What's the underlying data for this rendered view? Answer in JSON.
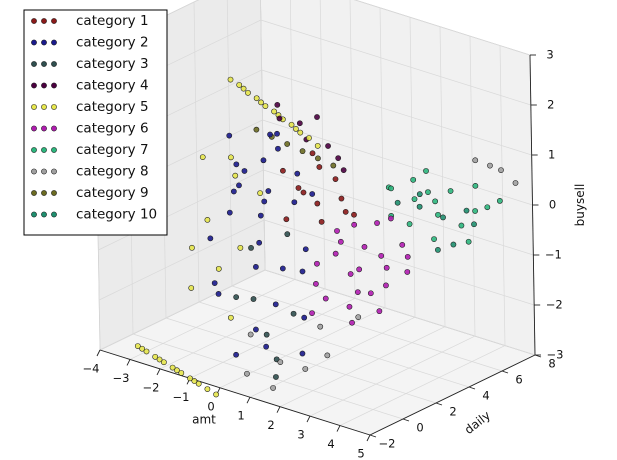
{
  "chart_data": {
    "type": "scatter",
    "projection": "3d",
    "title": "",
    "xlabel": "amt",
    "ylabel": "daily",
    "zlabel": "buysell",
    "xlim": [
      -4,
      5
    ],
    "ylim": [
      -2,
      8
    ],
    "zlim": [
      -3,
      3
    ],
    "x_ticks": [
      -4,
      -3,
      -2,
      -1,
      0,
      1,
      2,
      3,
      4,
      5
    ],
    "y_ticks": [
      -2,
      0,
      2,
      4,
      6,
      8
    ],
    "z_ticks": [
      -3,
      -2,
      -1,
      0,
      1,
      2,
      3
    ],
    "grid": true,
    "legend_position": "top-left",
    "series": [
      {
        "name": "category 1",
        "color": "#8b1a1a",
        "points": [
          [
            0.4,
            2.2,
            0.4
          ],
          [
            0.8,
            2.6,
            0.1
          ],
          [
            1.2,
            3.0,
            0.6
          ],
          [
            0.2,
            1.8,
            -0.2
          ],
          [
            1.0,
            2.4,
            0.9
          ],
          [
            0.6,
            3.2,
            -0.4
          ],
          [
            1.5,
            2.8,
            0.3
          ],
          [
            0.0,
            2.0,
            0.7
          ],
          [
            1.3,
            3.4,
            -0.1
          ],
          [
            0.9,
            1.6,
            0.5
          ],
          [
            1.8,
            3.0,
            0.0
          ],
          [
            0.5,
            2.9,
            1.0
          ]
        ]
      },
      {
        "name": "category 2",
        "color": "#1a1a8c",
        "points": [
          [
            -1.0,
            1.0,
            0.8
          ],
          [
            -0.5,
            2.0,
            0.2
          ],
          [
            0.0,
            0.5,
            -0.5
          ],
          [
            -1.5,
            1.5,
            1.2
          ],
          [
            0.5,
            1.0,
            -1.0
          ],
          [
            -0.8,
            0.2,
            0.0
          ],
          [
            0.2,
            2.5,
            0.6
          ],
          [
            -1.2,
            3.0,
            -0.3
          ],
          [
            0.8,
            0.0,
            -1.5
          ],
          [
            -0.3,
            1.8,
            1.4
          ],
          [
            -1.8,
            0.8,
            -0.8
          ],
          [
            0.4,
            -0.5,
            -2.0
          ],
          [
            -0.6,
            2.8,
            0.9
          ],
          [
            1.0,
            1.5,
            -0.6
          ],
          [
            -1.4,
            2.2,
            0.4
          ],
          [
            0.0,
            -1.0,
            -2.5
          ],
          [
            -0.2,
            1.2,
            1.0
          ],
          [
            0.6,
            2.0,
            -1.2
          ],
          [
            -1.0,
            -0.2,
            -1.6
          ],
          [
            0.3,
            3.2,
            0.1
          ],
          [
            -0.7,
            0.6,
            0.5
          ],
          [
            1.3,
            0.8,
            -1.8
          ],
          [
            -1.6,
            1.9,
            0.0
          ],
          [
            0.9,
            -0.8,
            -2.2
          ],
          [
            -0.4,
            2.4,
            1.3
          ],
          [
            0.1,
            0.1,
            -0.9
          ],
          [
            -1.1,
            2.6,
            -0.5
          ],
          [
            0.7,
            1.4,
            0.3
          ],
          [
            -0.9,
            -0.6,
            -1.3
          ],
          [
            1.5,
            0.3,
            -2.4
          ]
        ]
      },
      {
        "name": "category 3",
        "color": "#2f4f4f",
        "points": [
          [
            -0.5,
            1.0,
            -1.8
          ],
          [
            0.2,
            0.5,
            -2.3
          ],
          [
            -1.0,
            1.8,
            -1.0
          ],
          [
            0.8,
            0.0,
            -2.6
          ],
          [
            0.0,
            2.2,
            -0.6
          ],
          [
            -0.3,
            -0.4,
            -1.5
          ],
          [
            0.5,
            1.6,
            -2.0
          ],
          [
            1.1,
            -0.6,
            -2.8
          ]
        ]
      },
      {
        "name": "category 4",
        "color": "#4b0040",
        "points": [
          [
            -1.2,
            4.0,
            1.2
          ],
          [
            -0.8,
            4.5,
            1.1
          ],
          [
            -0.2,
            3.8,
            1.0
          ],
          [
            0.3,
            4.2,
            0.9
          ],
          [
            0.8,
            3.9,
            0.8
          ],
          [
            -1.6,
            4.6,
            1.3
          ],
          [
            1.2,
            3.5,
            0.7
          ],
          [
            -0.5,
            5.0,
            1.2
          ]
        ]
      },
      {
        "name": "category 5",
        "color": "#e6e64d",
        "points": [
          [
            -3.6,
            5.4,
            1.3
          ],
          [
            -3.2,
            5.2,
            1.3
          ],
          [
            -2.8,
            5.0,
            1.25
          ],
          [
            -2.4,
            4.8,
            1.25
          ],
          [
            -2.0,
            4.6,
            1.2
          ],
          [
            -1.6,
            4.4,
            1.2
          ],
          [
            -1.2,
            4.2,
            1.15
          ],
          [
            -0.8,
            4.0,
            1.15
          ],
          [
            -0.4,
            3.8,
            1.1
          ],
          [
            0.0,
            3.6,
            1.1
          ],
          [
            0.4,
            3.4,
            1.05
          ],
          [
            -3.0,
            5.1,
            1.28
          ],
          [
            -2.2,
            4.7,
            1.22
          ],
          [
            -1.4,
            4.3,
            1.18
          ],
          [
            -0.6,
            3.9,
            1.12
          ],
          [
            -3.4,
            -0.8,
            -3.0
          ],
          [
            -3.0,
            -1.0,
            -3.0
          ],
          [
            -2.6,
            -1.2,
            -3.0
          ],
          [
            -2.2,
            -1.4,
            -3.0
          ],
          [
            -1.8,
            -1.6,
            -3.0
          ],
          [
            -1.4,
            -1.8,
            -3.0
          ],
          [
            -1.0,
            -2.0,
            -3.0
          ],
          [
            -0.6,
            -2.2,
            -3.0
          ],
          [
            -0.2,
            -2.4,
            -3.0
          ],
          [
            0.2,
            -2.6,
            -3.0
          ],
          [
            -3.2,
            -0.9,
            -3.0
          ],
          [
            -2.4,
            -1.3,
            -3.0
          ],
          [
            -1.6,
            -1.7,
            -3.0
          ],
          [
            -0.8,
            -2.1,
            -3.0
          ],
          [
            -2.0,
            1.0,
            -0.5
          ],
          [
            -1.6,
            2.0,
            0.3
          ],
          [
            -1.2,
            0.2,
            -1.2
          ],
          [
            -2.4,
            1.5,
            0.6
          ],
          [
            -0.8,
            0.8,
            -0.8
          ],
          [
            -1.8,
            -0.4,
            -1.6
          ],
          [
            -1.0,
            2.4,
            0.0
          ],
          [
            -2.2,
            0.4,
            -1.0
          ],
          [
            -1.4,
            1.4,
            0.8
          ],
          [
            -0.6,
            -0.2,
            -2.0
          ]
        ]
      },
      {
        "name": "category 6",
        "color": "#b01cb0",
        "points": [
          [
            2.0,
            1.5,
            -0.5
          ],
          [
            2.5,
            2.0,
            -0.8
          ],
          [
            3.0,
            1.0,
            -1.0
          ],
          [
            1.5,
            2.5,
            -0.3
          ],
          [
            2.8,
            2.8,
            -0.6
          ],
          [
            3.5,
            1.8,
            -0.9
          ],
          [
            2.2,
            0.5,
            -1.2
          ],
          [
            1.8,
            3.0,
            -0.2
          ],
          [
            3.2,
            2.4,
            -0.7
          ],
          [
            2.6,
            1.2,
            -1.4
          ],
          [
            1.2,
            1.8,
            -0.9
          ],
          [
            3.8,
            2.6,
            -0.4
          ],
          [
            2.4,
            3.3,
            -0.1
          ],
          [
            2.9,
            0.8,
            -1.6
          ],
          [
            1.6,
            1.0,
            -1.1
          ],
          [
            3.4,
            3.0,
            -0.3
          ],
          [
            2.1,
            2.2,
            -1.0
          ],
          [
            2.7,
            3.6,
            0.0
          ],
          [
            3.6,
            1.2,
            -1.3
          ],
          [
            1.9,
            0.2,
            -1.5
          ],
          [
            4.0,
            2.2,
            -0.6
          ],
          [
            2.3,
            2.7,
            -0.5
          ],
          [
            3.1,
            1.6,
            -1.1
          ],
          [
            1.4,
            2.9,
            -0.6
          ]
        ]
      },
      {
        "name": "category 7",
        "color": "#2cb67d",
        "points": [
          [
            2.5,
            4.0,
            0.5
          ],
          [
            3.0,
            4.5,
            0.3
          ],
          [
            3.5,
            5.0,
            0.0
          ],
          [
            4.0,
            5.5,
            -0.2
          ],
          [
            2.8,
            4.8,
            0.6
          ],
          [
            3.3,
            5.2,
            0.2
          ],
          [
            3.8,
            4.2,
            -0.3
          ],
          [
            2.2,
            4.4,
            0.4
          ],
          [
            4.3,
            5.8,
            0.1
          ],
          [
            3.6,
            5.6,
            0.4
          ],
          [
            2.6,
            3.8,
            0.0
          ],
          [
            4.6,
            6.0,
            0.2
          ],
          [
            3.1,
            4.0,
            -0.1
          ],
          [
            4.1,
            6.2,
            0.5
          ],
          [
            2.9,
            5.4,
            0.7
          ],
          [
            4.8,
            6.4,
            0.3
          ],
          [
            3.4,
            4.6,
            0.5
          ],
          [
            4.4,
            5.2,
            -0.4
          ]
        ]
      },
      {
        "name": "category 8",
        "color": "#a0a0a0",
        "points": [
          [
            0.5,
            -1.0,
            -2.0
          ],
          [
            1.2,
            -0.5,
            -2.5
          ],
          [
            2.0,
            0.5,
            -1.8
          ],
          [
            1.5,
            -1.5,
            -2.8
          ],
          [
            2.5,
            0.0,
            -2.2
          ],
          [
            3.0,
            1.0,
            -1.5
          ],
          [
            4.5,
            5.5,
            1.2
          ],
          [
            4.8,
            6.5,
            0.9
          ],
          [
            5.0,
            7.0,
            0.6
          ],
          [
            4.6,
            6.2,
            1.0
          ],
          [
            0.8,
            -1.8,
            -2.6
          ],
          [
            2.2,
            -0.8,
            -2.4
          ]
        ]
      },
      {
        "name": "category 9",
        "color": "#6b6b22",
        "points": [
          [
            -0.4,
            3.0,
            1.0
          ],
          [
            0.0,
            3.2,
            0.9
          ],
          [
            0.4,
            3.4,
            0.8
          ],
          [
            -0.8,
            2.8,
            1.1
          ],
          [
            0.8,
            3.6,
            0.7
          ],
          [
            -1.2,
            2.6,
            1.2
          ]
        ]
      },
      {
        "name": "category 10",
        "color": "#1f8f6f",
        "points": [
          [
            3.0,
            4.8,
            0.1
          ],
          [
            3.5,
            5.3,
            -0.1
          ],
          [
            4.0,
            5.0,
            -0.5
          ],
          [
            2.6,
            4.2,
            0.2
          ],
          [
            4.2,
            5.9,
            -0.2
          ],
          [
            3.7,
            4.6,
            -0.6
          ],
          [
            2.9,
            5.0,
            0.3
          ],
          [
            3.9,
            6.0,
            0.0
          ]
        ]
      }
    ]
  }
}
